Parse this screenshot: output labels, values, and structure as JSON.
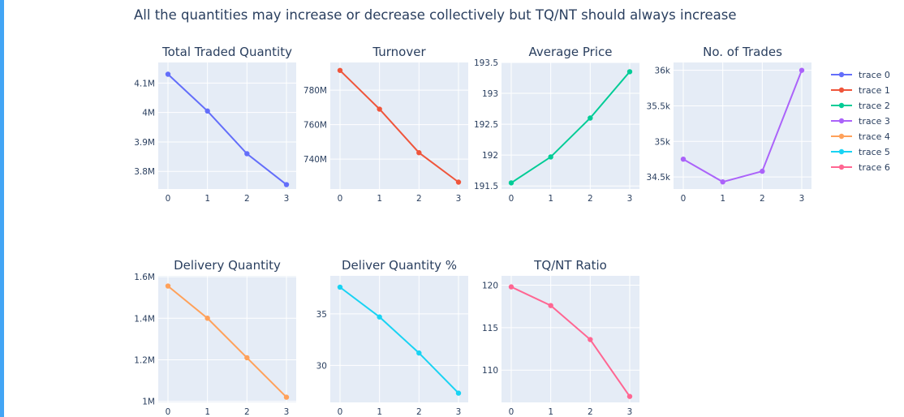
{
  "header": {
    "title": "All the quantities may increase or decrease collectively but TQ/NT should always increase"
  },
  "chart_data": [
    {
      "type": "line",
      "title": "Total Traded Quantity",
      "series_name": "trace 0",
      "color": "#636efa",
      "x": [
        0,
        1,
        2,
        3
      ],
      "values": [
        4130000,
        4005000,
        3860000,
        3755000
      ],
      "ylim": [
        3740000,
        4170000
      ],
      "yticks": [
        3800000,
        3900000,
        4000000,
        4100000
      ],
      "ytick_labels": [
        "3.8M",
        "3.9M",
        "4M",
        "4.1M"
      ]
    },
    {
      "type": "line",
      "title": "Turnover",
      "series_name": "trace 1",
      "color": "#EF553B",
      "x": [
        0,
        1,
        2,
        3
      ],
      "values": [
        791500000,
        769000000,
        743700000,
        726600000
      ],
      "ylim": [
        722600000,
        796100000
      ],
      "yticks": [
        740000000,
        760000000,
        780000000
      ],
      "ytick_labels": [
        "740M",
        "760M",
        "780M"
      ]
    },
    {
      "type": "line",
      "title": "Average Price",
      "series_name": "trace 2",
      "color": "#00cc96",
      "x": [
        0,
        1,
        2,
        3
      ],
      "values": [
        191.55,
        191.97,
        192.6,
        193.35
      ],
      "ylim": [
        191.45,
        193.5
      ],
      "yticks": [
        191.5,
        192,
        192.5,
        193,
        193.5
      ],
      "ytick_labels": [
        "191.5",
        "192",
        "192.5",
        "193",
        "193.5"
      ]
    },
    {
      "type": "line",
      "title": "No. of Trades",
      "series_name": "trace 3",
      "color": "#ab63fa",
      "x": [
        0,
        1,
        2,
        3
      ],
      "values": [
        34750,
        34430,
        34580,
        36000
      ],
      "ylim": [
        34330,
        36110
      ],
      "yticks": [
        34500,
        35000,
        35500,
        36000
      ],
      "ytick_labels": [
        "34.5k",
        "35k",
        "35.5k",
        "36k"
      ]
    },
    {
      "type": "line",
      "title": "Delivery Quantity",
      "series_name": "trace 4",
      "color": "#FFA15A",
      "x": [
        0,
        1,
        2,
        3
      ],
      "values": [
        1555000,
        1400000,
        1210000,
        1020000
      ],
      "ylim": [
        995000,
        1604000
      ],
      "yticks": [
        1000000,
        1200000,
        1400000,
        1600000
      ],
      "ytick_labels": [
        "1M",
        "1.2M",
        "1.4M",
        "1.6M"
      ]
    },
    {
      "type": "line",
      "title": "Deliver Quantity %",
      "series_name": "trace 5",
      "color": "#19d3f3",
      "x": [
        0,
        1,
        2,
        3
      ],
      "values": [
        37.6,
        34.7,
        31.2,
        27.3
      ],
      "ylim": [
        26.4,
        38.7
      ],
      "yticks": [
        30,
        35
      ],
      "ytick_labels": [
        "30",
        "35"
      ]
    },
    {
      "type": "line",
      "title": "TQ/NT Ratio",
      "series_name": "trace 6",
      "color": "#FF6692",
      "x": [
        0,
        1,
        2,
        3
      ],
      "values": [
        119.8,
        117.6,
        113.6,
        106.9
      ],
      "ylim": [
        106.2,
        121.1
      ],
      "yticks": [
        110,
        115,
        120
      ],
      "ytick_labels": [
        "110",
        "115",
        "120"
      ]
    }
  ],
  "legend": {
    "placement": "top-right",
    "items": [
      {
        "label": "trace 0",
        "color": "#636efa"
      },
      {
        "label": "trace 1",
        "color": "#EF553B"
      },
      {
        "label": "trace 2",
        "color": "#00cc96"
      },
      {
        "label": "trace 3",
        "color": "#ab63fa"
      },
      {
        "label": "trace 4",
        "color": "#FFA15A"
      },
      {
        "label": "trace 5",
        "color": "#19d3f3"
      },
      {
        "label": "trace 6",
        "color": "#FF6692"
      }
    ]
  }
}
